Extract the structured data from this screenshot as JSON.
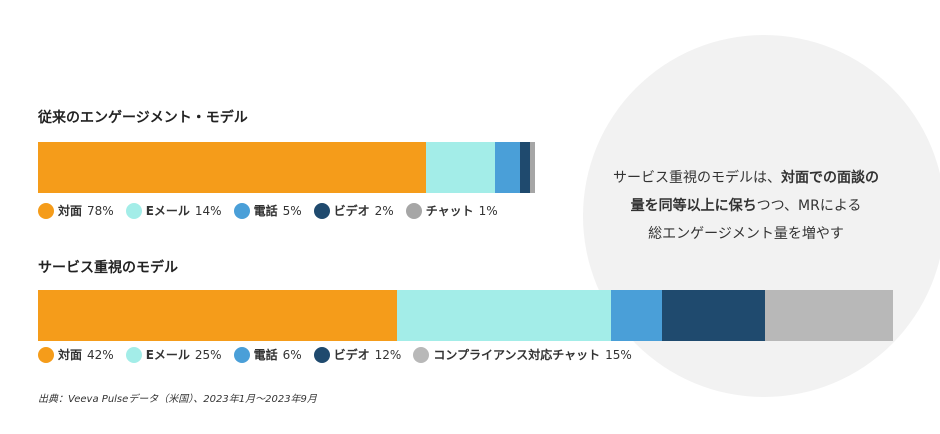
{
  "chart_data": [
    {
      "type": "stacked-bar",
      "title": "従来のエンゲージメント・モデル",
      "series": [
        {
          "name": "対面",
          "color": "#f59c1a",
          "values": [
            78
          ],
          "value_labels": [
            "78%"
          ]
        },
        {
          "name": "Eメール",
          "color": "#a3ede8",
          "values": [
            14
          ],
          "value_labels": [
            "14%"
          ]
        },
        {
          "name": "電話",
          "color": "#4a9fd8",
          "values": [
            5
          ],
          "value_labels": [
            "5%"
          ]
        },
        {
          "name": "ビデオ",
          "color": "#1f4a6e",
          "values": [
            2
          ],
          "value_labels": [
            "2%"
          ]
        },
        {
          "name": "チャット",
          "color": "#a6a6a6",
          "values": [
            1
          ],
          "value_labels": [
            "1%"
          ]
        }
      ]
    },
    {
      "type": "stacked-bar",
      "title": "サービス重視のモデル",
      "series": [
        {
          "name": "対面",
          "color": "#f59c1a",
          "values": [
            42
          ],
          "value_labels": [
            "42%"
          ]
        },
        {
          "name": "Eメール",
          "color": "#a3ede8",
          "values": [
            25
          ],
          "value_labels": [
            "25%"
          ]
        },
        {
          "name": "電話",
          "color": "#4a9fd8",
          "values": [
            6
          ],
          "value_labels": [
            "6%"
          ]
        },
        {
          "name": "ビデオ",
          "color": "#1f4a6e",
          "values": [
            12
          ],
          "value_labels": [
            "12%"
          ]
        },
        {
          "name": "コンプライアンス対応チャット",
          "color": "#b8b8b8",
          "values": [
            15
          ],
          "value_labels": [
            "15%"
          ]
        }
      ]
    }
  ],
  "callout": {
    "lines": [
      [
        {
          "text": "サービス重視のモデルは、",
          "bold": false
        },
        {
          "text": "対面での面談の",
          "bold": true
        }
      ],
      [
        {
          "text": "量を同等以上に保ち",
          "bold": true
        },
        {
          "text": "つつ、MRによる",
          "bold": false
        }
      ],
      [
        {
          "text": "総エンゲージメント量を増やす",
          "bold": false
        }
      ]
    ]
  },
  "source": "出典：Veeva Pulseデータ（米国）、2023年1月～2023年9月"
}
